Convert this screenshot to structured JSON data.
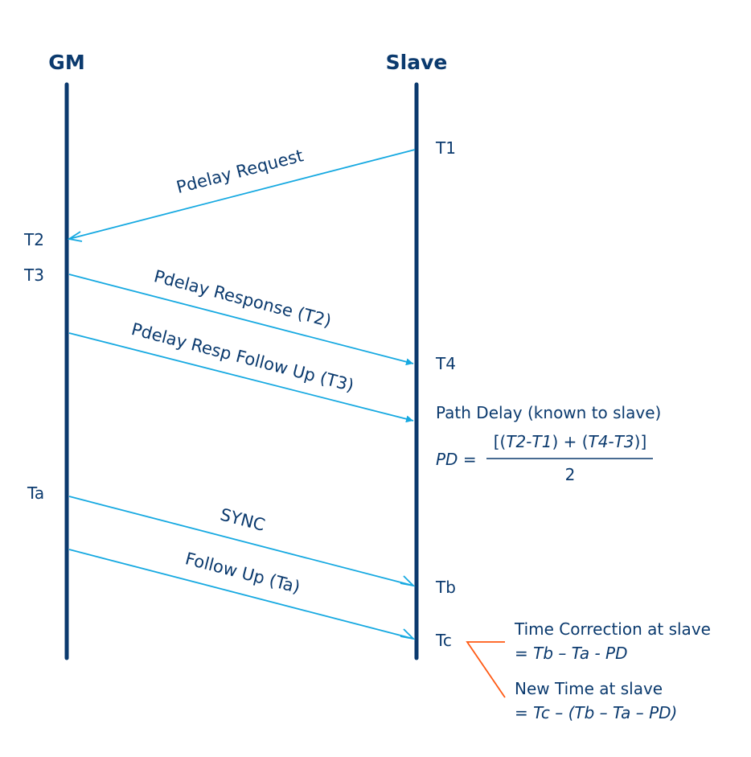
{
  "colors": {
    "navy": "#0b3a6e",
    "arrow": "#16a9e1",
    "bracket": "#ff5a14",
    "background": "#ffffff"
  },
  "participants": {
    "left": "GM",
    "right": "Slave"
  },
  "timestamps": {
    "t1": "T1",
    "t2": "T2",
    "t3": "T3",
    "t4": "T4",
    "ta": "Ta",
    "tb": "Tb",
    "tc": "Tc"
  },
  "messages": {
    "pdelay_request": "Pdelay Request",
    "pdelay_response": "Pdelay Response (T2)",
    "pdelay_resp_follow_up": "Pdelay Resp Follow Up  (T3)",
    "sync": "SYNC",
    "follow_up": "Follow Up (Ta)"
  },
  "path_delay": {
    "heading": "Path Delay (known to slave)",
    "lhs": "PD",
    "equals": " =",
    "numerator": {
      "open": "[(",
      "a": "T2",
      "op1": "-",
      "b": "T1",
      "mid": ") + (",
      "c": "T4",
      "op2": "-",
      "d": "T3",
      "close": ")]"
    },
    "denominator": "2"
  },
  "time_correction": {
    "title": "Time Correction at slave",
    "formula": "= Tb – Ta - PD"
  },
  "new_time": {
    "title": "New Time at slave",
    "formula": "= Tc – (Tb – Ta – PD)"
  }
}
